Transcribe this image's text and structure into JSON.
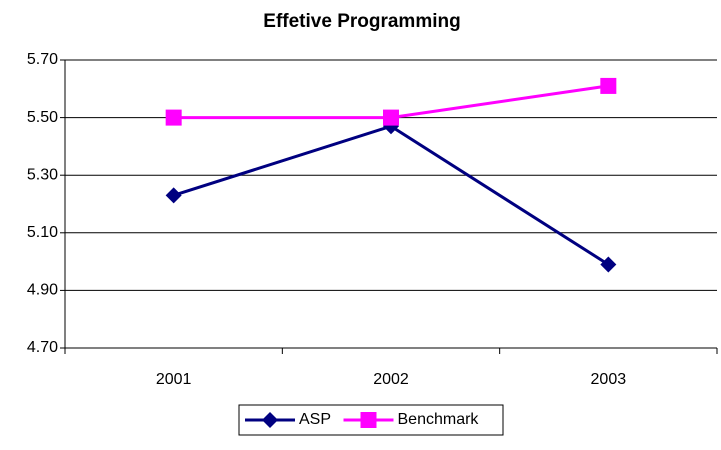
{
  "chart_data": {
    "type": "line",
    "title": "Effetive Programming",
    "categories": [
      "2001",
      "2002",
      "2003"
    ],
    "series": [
      {
        "name": "ASP",
        "color": "#000080",
        "marker": "diamond",
        "values": [
          5.23,
          5.47,
          4.99
        ]
      },
      {
        "name": "Benchmark",
        "color": "#ff00ff",
        "marker": "square",
        "values": [
          5.5,
          5.5,
          5.61
        ]
      }
    ],
    "ylim": [
      4.7,
      5.7
    ],
    "yticks": [
      {
        "value": 4.7,
        "label": "4.70"
      },
      {
        "value": 4.9,
        "label": "4.90"
      },
      {
        "value": 5.1,
        "label": "5.10"
      },
      {
        "value": 5.3,
        "label": "5.30"
      },
      {
        "value": 5.5,
        "label": "5.50"
      },
      {
        "value": 5.7,
        "label": "5.70"
      }
    ],
    "grid": true,
    "legend": "bottom"
  }
}
